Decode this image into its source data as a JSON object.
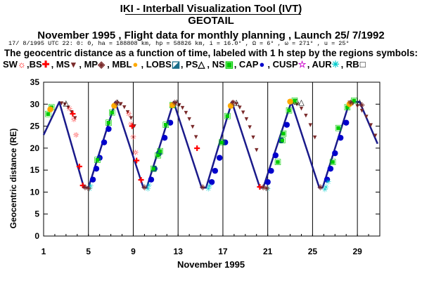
{
  "header": {
    "title": "IKI - Interball Visualization Tool (IVT)",
    "subtitle": "GEOTAIL",
    "flight_line": "November 1995 ,  Flight data for monthly planning ,   Launch 25/ 7/1992",
    "orbit_params": "17/ 8/1995 UTC 22: 0: 0, ha = 188808 km, hp =  58826 km, i = 16.0° , Ω =   6° , ω = 271° , u =  25°",
    "description": "The geocentric distance as a function of time, labeled with 1 h step by the regions symbols:"
  },
  "legend": [
    {
      "label": "SW",
      "symbol": "☼",
      "color": "#ff0000"
    },
    {
      "label": ",BS",
      "symbol": "✚",
      "color": "#ff0000"
    },
    {
      "label": ", MS",
      "symbol": "▾",
      "color": "#7a2a2a"
    },
    {
      "label": ", MP",
      "symbol": "◈",
      "color": "#7a2a2a"
    },
    {
      "label": ", MBL",
      "symbol": "●",
      "color": "#ffaa00"
    },
    {
      "label": ", LOBS",
      "symbol": "◪",
      "color": "#1a6e8a"
    },
    {
      "label": ", PS",
      "symbol": "△",
      "color": "#000000"
    },
    {
      "label": ", NS",
      "symbol": "▣",
      "color": "#00cc00"
    },
    {
      "label": ", CAP",
      "symbol": "●",
      "color": "#0000cc"
    },
    {
      "label": ", CUSP",
      "symbol": "☆",
      "color": "#cc00cc"
    },
    {
      "label": ", AUR",
      "symbol": "✳",
      "color": "#00cccc"
    },
    {
      "label": ", RB",
      "symbol": "□",
      "color": "#000000"
    }
  ],
  "chart_data": {
    "type": "line",
    "xlabel": "November 1995",
    "ylabel": "Geocentric distance (RE)",
    "xlim": [
      1,
      31
    ],
    "ylim": [
      0,
      35
    ],
    "x_ticks": [
      1,
      5,
      9,
      13,
      17,
      21,
      25,
      29
    ],
    "y_ticks": [
      0,
      5,
      10,
      15,
      20,
      25,
      30,
      35
    ],
    "grid_x": true,
    "series": [
      {
        "x": [
          1.0,
          2.4,
          4.6,
          5.0,
          7.4,
          9.9,
          10.2,
          12.6,
          15.1,
          15.5,
          17.8,
          20.3,
          20.6,
          23.1,
          25.6,
          25.9,
          28.3,
          29.2,
          30.8
        ],
        "y": [
          23.0,
          30.5,
          11.0,
          11.0,
          30.5,
          11.0,
          11.0,
          30.5,
          11.0,
          11.0,
          30.5,
          11.0,
          11.0,
          30.5,
          11.0,
          11.0,
          30.5,
          30.5,
          21.0
        ]
      }
    ],
    "region_markers": [
      {
        "region": "MS",
        "symbol": "▾",
        "color": "#7a2a2a",
        "x": [
          2.6,
          2.9,
          3.2,
          3.5,
          3.8,
          7.6,
          7.9,
          8.2,
          8.5,
          8.8,
          9.1,
          12.8,
          13.1,
          13.4,
          13.7,
          14.0,
          14.3,
          14.6,
          17.9,
          18.2,
          18.5,
          18.8,
          19.1,
          19.4,
          19.7,
          20.0,
          23.3,
          23.6,
          24.0,
          24.4,
          24.8,
          25.2,
          28.3,
          28.6,
          29.0,
          29.4,
          29.8,
          30.2,
          30.6
        ],
        "y": [
          30.4,
          30.1,
          29.4,
          28.4,
          27.0,
          30.4,
          30.2,
          29.5,
          28.4,
          27.0,
          25.2,
          30.4,
          30.0,
          29.3,
          28.2,
          26.8,
          25.0,
          22.7,
          30.5,
          30.2,
          29.4,
          28.3,
          26.8,
          24.9,
          22.6,
          19.7,
          30.5,
          30.1,
          29.2,
          27.6,
          25.4,
          22.6,
          30.5,
          30.3,
          29.7,
          28.7,
          27.3,
          25.4,
          23.0
        ]
      },
      {
        "region": "BS",
        "symbol": "✚",
        "color": "#ff0000",
        "x": [
          3.6,
          4.2,
          4.5,
          8.9,
          9.3,
          9.7,
          14.7,
          20.3
        ],
        "y": [
          27.8,
          15.8,
          11.5,
          25.0,
          17.2,
          12.8,
          20.0,
          11.2
        ]
      },
      {
        "region": "SW",
        "symbol": "☼",
        "color": "#ff0000",
        "x": [
          3.3,
          3.7,
          3.9,
          8.6,
          8.8,
          9.0,
          9.2
        ],
        "y": [
          29.0,
          26.5,
          23.0,
          27.8,
          25.5,
          22.5,
          19.0
        ]
      },
      {
        "region": "PS",
        "symbol": "△",
        "color": "#000000",
        "x": [
          3.0,
          7.6,
          12.9,
          18.2,
          23.6,
          24.0,
          29.2
        ],
        "y": [
          30.4,
          30.6,
          30.6,
          30.5,
          30.8,
          30.5,
          30.6
        ]
      },
      {
        "region": "CAP",
        "symbol": "●",
        "color": "#0000cc",
        "x": [
          5.4,
          5.7,
          6.0,
          6.4,
          6.8,
          10.6,
          10.9,
          11.3,
          11.8,
          12.3,
          16.0,
          16.3,
          16.7,
          17.2,
          21.0,
          21.3,
          21.7,
          22.2,
          22.7,
          26.3,
          26.6,
          27.0,
          27.5,
          28.0
        ],
        "y": [
          13.0,
          15.5,
          18.0,
          21.5,
          24.5,
          13.0,
          15.5,
          19.0,
          22.5,
          26.0,
          12.5,
          15.0,
          18.0,
          21.5,
          12.5,
          15.0,
          18.5,
          22.0,
          25.5,
          13.0,
          15.5,
          19.0,
          22.5,
          26.0
        ]
      },
      {
        "region": "NS",
        "symbol": "▣",
        "color": "#00cc00",
        "x": [
          1.4,
          1.7,
          5.8,
          6.8,
          7.1,
          10.8,
          11.2,
          11.4,
          11.9,
          12.5,
          16.9,
          17.4,
          21.9,
          22.3,
          22.4,
          22.9,
          23.4,
          26.8,
          27.3,
          28.1,
          28.7
        ],
        "y": [
          28.0,
          29.5,
          17.5,
          26.0,
          28.3,
          15.5,
          18.5,
          19.5,
          25.5,
          30.0,
          21.5,
          27.5,
          17.0,
          22.0,
          23.5,
          28.8,
          31.0,
          17.0,
          24.8,
          29.5,
          31.0
        ]
      },
      {
        "region": "MBL",
        "symbol": "●",
        "color": "#ffaa00",
        "x": [
          1.6,
          7.3,
          12.5,
          17.7,
          23.0,
          28.3
        ],
        "y": [
          29.0,
          29.8,
          30.0,
          29.8,
          30.8,
          30.2
        ]
      },
      {
        "region": "AUR",
        "symbol": "✳",
        "color": "#00cccc",
        "x": [
          5.1,
          5.2,
          10.3,
          10.4,
          15.7,
          15.8,
          21.0,
          26.1,
          26.2,
          26.4
        ],
        "y": [
          10.8,
          11.4,
          10.8,
          11.6,
          10.8,
          11.4,
          10.8,
          10.6,
          11.2,
          12.4
        ]
      },
      {
        "region": "MP",
        "symbol": "◈",
        "color": "#7a2a2a",
        "x": [
          4.7,
          5.0,
          7.5,
          10.0,
          12.7,
          15.2,
          17.9,
          20.6,
          20.9,
          25.7,
          28.4,
          29.4
        ],
        "y": [
          11.3,
          11.0,
          30.5,
          11.3,
          30.5,
          11.3,
          30.5,
          11.3,
          11.0,
          11.3,
          30.5,
          30.0
        ]
      }
    ]
  },
  "colors": {
    "axis": "#000000",
    "orbit": "#1a1a8a",
    "background": "#ffffff"
  }
}
